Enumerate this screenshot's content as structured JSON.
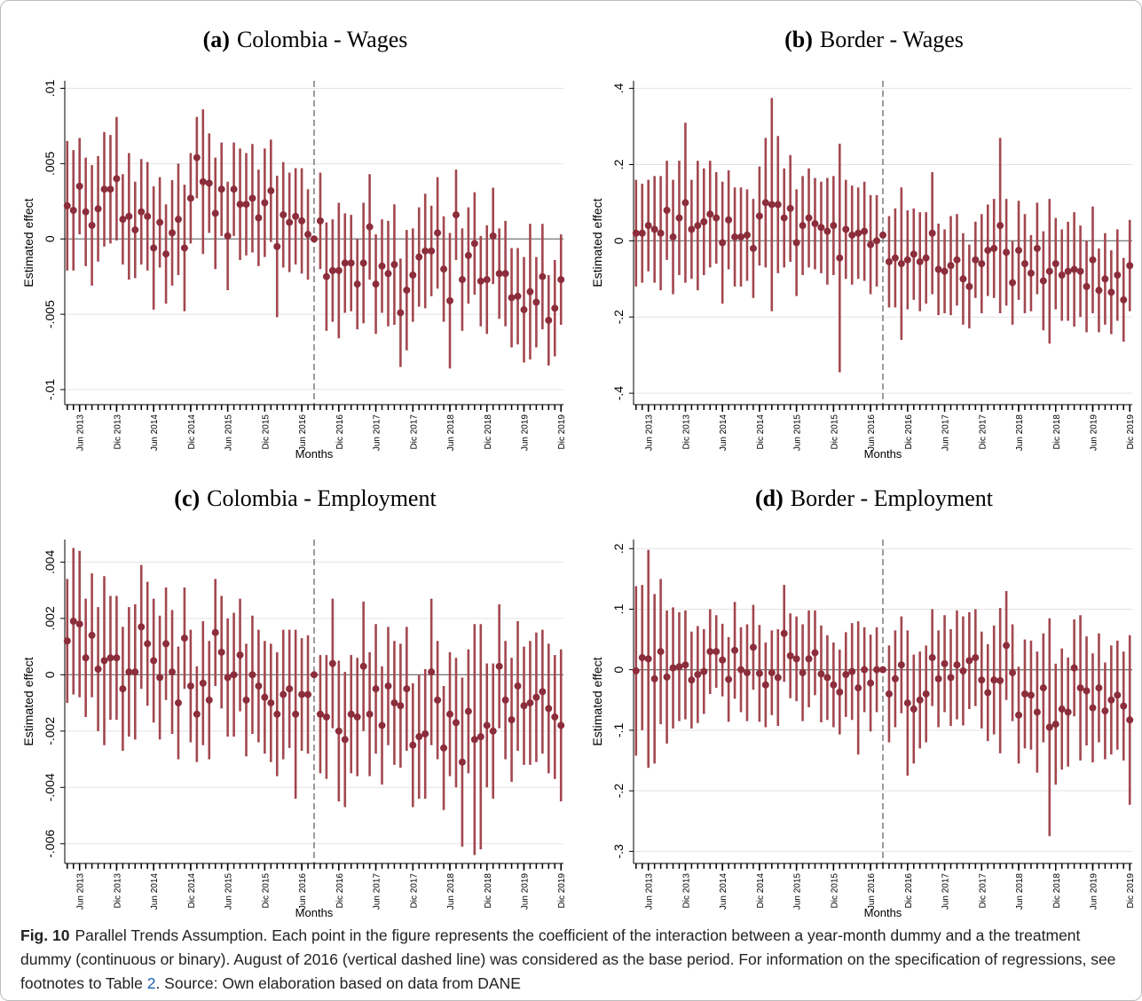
{
  "chart_data": [
    {
      "type": "errorbar",
      "panel": "(a)",
      "title": "Colombia - Wages",
      "xlabel": "Months",
      "ylabel": "Estimated effect",
      "color": "#8c2d3b",
      "grid": true,
      "vline": 40,
      "xlim": [
        -0.4,
        80.4
      ],
      "ylim": [
        -0.011,
        0.0105
      ],
      "yticks": [
        {
          "value": 0.01,
          "label": ".01"
        },
        {
          "value": 0.005,
          "label": ".005"
        },
        0,
        {
          "value": -0.005,
          "label": "-.005"
        },
        {
          "value": -0.01,
          "label": "-.01"
        }
      ],
      "xticks": [
        {
          "value": 2,
          "label": "Jun 2013"
        },
        {
          "value": 8,
          "label": "Dic 2013"
        },
        {
          "value": 14,
          "label": "Jun 2014"
        },
        {
          "value": 20,
          "label": "Dic 2014"
        },
        {
          "value": 26,
          "label": "Jun 2015"
        },
        {
          "value": 32,
          "label": "Dic 2015"
        },
        {
          "value": 38,
          "label": "Jun 2016"
        },
        {
          "value": 44,
          "label": "Dic 2016"
        },
        {
          "value": 50,
          "label": "Jun 2017"
        },
        {
          "value": 56,
          "label": "Dic 2017"
        },
        {
          "value": 62,
          "label": "Jun 2018"
        },
        {
          "value": 68,
          "label": "Dic 2018"
        },
        {
          "value": 74,
          "label": "Jun 2019"
        },
        {
          "value": 80,
          "label": "Dic 2019"
        }
      ],
      "values": [
        0.0022,
        0.0019,
        0.0035,
        0.0018,
        0.0009,
        0.002,
        0.0033,
        0.0033,
        0.004,
        0.0013,
        0.0015,
        0.0006,
        0.0018,
        0.0015,
        -0.0006,
        0.0011,
        -0.001,
        0.0004,
        0.0013,
        -0.0006,
        0.0027,
        0.0054,
        0.0038,
        0.0037,
        0.0017,
        0.0033,
        0.0002,
        0.0033,
        0.0023,
        0.0023,
        0.0027,
        0.0014,
        0.0024,
        0.0032,
        -0.0005,
        0.0016,
        0.0011,
        0.0015,
        0.0012,
        0.0003,
        0,
        0.0012,
        -0.0025,
        -0.0021,
        -0.0021,
        -0.0016,
        -0.0016,
        -0.003,
        -0.0016,
        0.0008,
        -0.003,
        -0.0018,
        -0.0023,
        -0.0017,
        -0.0049,
        -0.0034,
        -0.0024,
        -0.0012,
        -0.0008,
        -0.0008,
        0.0004,
        -0.002,
        -0.0041,
        0.0016,
        -0.0027,
        -0.0011,
        -0.0003,
        -0.0028,
        -0.0027,
        0.0002,
        -0.0023,
        -0.0023,
        -0.0039,
        -0.0038,
        -0.0047,
        -0.0035,
        -0.0042,
        -0.0025,
        -0.0054,
        -0.0046,
        -0.0027
      ],
      "errors": [
        0.0043,
        0.004,
        0.0032,
        0.0036,
        0.004,
        0.0035,
        0.0038,
        0.0036,
        0.0041,
        0.003,
        0.0042,
        0.0032,
        0.0035,
        0.0036,
        0.0041,
        0.003,
        0.0033,
        0.0035,
        0.0037,
        0.0042,
        0.003,
        0.0027,
        0.0048,
        0.0033,
        0.0037,
        0.0031,
        0.0036,
        0.0031,
        0.0037,
        0.0034,
        0.0036,
        0.0032,
        0.0036,
        0.0034,
        0.0047,
        0.0035,
        0.0033,
        0.0032,
        0.0035,
        0.003,
        0,
        0.0032,
        0.0036,
        0.0034,
        0.0045,
        0.0033,
        0.0032,
        0.003,
        0.004,
        0.0035,
        0.0033,
        0.0031,
        0.0035,
        0.004,
        0.0036,
        0.004,
        0.0031,
        0.0033,
        0.0038,
        0.003,
        0.0037,
        0.0035,
        0.0045,
        0.003,
        0.0034,
        0.0032,
        0.0034,
        0.003,
        0.0036,
        0.0032,
        0.003,
        0.0035,
        0.0033,
        0.0032,
        0.0035,
        0.0045,
        0.003,
        0.0035,
        0.003,
        0.0032,
        0.003
      ]
    },
    {
      "type": "errorbar",
      "panel": "(b)",
      "title": "Border - Wages",
      "xlabel": "Months",
      "ylabel": "Estimated effect",
      "color": "#8c2d3b",
      "grid": true,
      "vline": 40,
      "xlim": [
        -0.4,
        80.4
      ],
      "ylim": [
        -0.43,
        0.42
      ],
      "yticks": [
        {
          "value": 0.4,
          "label": ".4"
        },
        {
          "value": 0.2,
          "label": ".2"
        },
        0,
        {
          "value": -0.2,
          "label": "-.2"
        },
        {
          "value": -0.4,
          "label": "-.4"
        }
      ],
      "xticks": [
        {
          "value": 2,
          "label": "Jun 2013"
        },
        {
          "value": 8,
          "label": "Dic 2013"
        },
        {
          "value": 14,
          "label": "Jun 2014"
        },
        {
          "value": 20,
          "label": "Dic 2014"
        },
        {
          "value": 26,
          "label": "Jun 2015"
        },
        {
          "value": 32,
          "label": "Dic 2015"
        },
        {
          "value": 38,
          "label": "Jun 2016"
        },
        {
          "value": 44,
          "label": "Dic 2016"
        },
        {
          "value": 50,
          "label": "Jun 2017"
        },
        {
          "value": 56,
          "label": "Dic 2017"
        },
        {
          "value": 62,
          "label": "Jun 2018"
        },
        {
          "value": 68,
          "label": "Dic 2018"
        },
        {
          "value": 74,
          "label": "Jun 2019"
        },
        {
          "value": 80,
          "label": "Dic 2019"
        }
      ],
      "values": [
        0.02,
        0.02,
        0.04,
        0.03,
        0.02,
        0.08,
        0.01,
        0.06,
        0.1,
        0.03,
        0.04,
        0.05,
        0.07,
        0.06,
        -0.005,
        0.055,
        0.01,
        0.01,
        0.015,
        -0.02,
        0.065,
        0.1,
        0.095,
        0.095,
        0.06,
        0.085,
        -0.005,
        0.04,
        0.06,
        0.045,
        0.035,
        0.025,
        0.04,
        -0.045,
        0.03,
        0.015,
        0.02,
        0.025,
        -0.01,
        0,
        0.015,
        -0.055,
        -0.045,
        -0.06,
        -0.05,
        -0.035,
        -0.055,
        -0.045,
        0.02,
        -0.075,
        -0.08,
        -0.065,
        -0.05,
        -0.1,
        -0.12,
        -0.05,
        -0.06,
        -0.025,
        -0.02,
        0.04,
        -0.03,
        -0.11,
        -0.025,
        -0.06,
        -0.085,
        -0.02,
        -0.105,
        -0.08,
        -0.06,
        -0.09,
        -0.08,
        -0.075,
        -0.08,
        -0.12,
        -0.05,
        -0.13,
        -0.1,
        -0.135,
        -0.09,
        -0.155,
        -0.065
      ],
      "errors": [
        0.14,
        0.13,
        0.12,
        0.14,
        0.15,
        0.13,
        0.15,
        0.15,
        0.21,
        0.13,
        0.17,
        0.14,
        0.14,
        0.12,
        0.16,
        0.13,
        0.13,
        0.13,
        0.12,
        0.13,
        0.13,
        0.17,
        0.28,
        0.18,
        0.13,
        0.14,
        0.14,
        0.13,
        0.13,
        0.12,
        0.12,
        0.14,
        0.13,
        0.3,
        0.13,
        0.13,
        0.12,
        0.13,
        0.13,
        0.12,
        0,
        0.12,
        0.13,
        0.2,
        0.13,
        0.12,
        0.13,
        0.12,
        0.16,
        0.12,
        0.11,
        0.13,
        0.12,
        0.12,
        0.11,
        0.1,
        0.13,
        0.12,
        0.13,
        0.23,
        0.14,
        0.11,
        0.13,
        0.13,
        0.1,
        0.12,
        0.13,
        0.19,
        0.12,
        0.12,
        0.13,
        0.15,
        0.12,
        0.12,
        0.14,
        0.11,
        0.12,
        0.11,
        0.12,
        0.11,
        0.12
      ]
    },
    {
      "type": "errorbar",
      "panel": "(c)",
      "title": "Colombia - Employment",
      "xlabel": "Months",
      "ylabel": "Estimated effect",
      "color": "#8c2d3b",
      "grid": true,
      "vline": 40,
      "xlim": [
        -0.4,
        80.4
      ],
      "ylim": [
        -0.0067,
        0.0048
      ],
      "yticks": [
        {
          "value": 0.004,
          "label": ".004"
        },
        {
          "value": 0.002,
          "label": ".002"
        },
        0,
        {
          "value": -0.002,
          "label": "-.002"
        },
        {
          "value": -0.004,
          "label": "-.004"
        },
        {
          "value": -0.006,
          "label": "-.006"
        }
      ],
      "xticks": [
        {
          "value": 2,
          "label": "Jun 2013"
        },
        {
          "value": 8,
          "label": "Dic 2013"
        },
        {
          "value": 14,
          "label": "Jun 2014"
        },
        {
          "value": 20,
          "label": "Dic 2014"
        },
        {
          "value": 26,
          "label": "Jun 2015"
        },
        {
          "value": 32,
          "label": "Dic 2015"
        },
        {
          "value": 38,
          "label": "Jun 2016"
        },
        {
          "value": 44,
          "label": "Dic 2016"
        },
        {
          "value": 50,
          "label": "Jun 2017"
        },
        {
          "value": 56,
          "label": "Dic 2017"
        },
        {
          "value": 62,
          "label": "Jun 2018"
        },
        {
          "value": 68,
          "label": "Dic 2018"
        },
        {
          "value": 74,
          "label": "Jun 2019"
        },
        {
          "value": 80,
          "label": "Dic 2019"
        }
      ],
      "values": [
        0.0012,
        0.0019,
        0.0018,
        0.0006,
        0.0014,
        0.0002,
        0.0005,
        0.0006,
        0.0006,
        -0.0005,
        0.0001,
        0.0001,
        0.0017,
        0.0011,
        0.0005,
        -0.0001,
        0.0011,
        0.0001,
        -0.001,
        0.0013,
        -0.0004,
        -0.0014,
        -0.0003,
        -0.0009,
        0.0015,
        0.0008,
        -0.0001,
        0,
        0.0007,
        -0.0009,
        0,
        -0.0004,
        -0.0008,
        -0.001,
        -0.0014,
        -0.0007,
        -0.0005,
        -0.0014,
        -0.0007,
        -0.0007,
        0,
        -0.0014,
        -0.0015,
        0.0004,
        -0.002,
        -0.0023,
        -0.0014,
        -0.0015,
        0.0003,
        -0.0014,
        -0.0005,
        -0.0018,
        -0.0004,
        -0.001,
        -0.0011,
        -0.0005,
        -0.0025,
        -0.0022,
        -0.0021,
        0.0001,
        -0.0009,
        -0.0026,
        -0.0014,
        -0.0017,
        -0.0031,
        -0.0013,
        -0.0023,
        -0.0022,
        -0.0018,
        -0.002,
        0.0003,
        -0.0009,
        -0.0016,
        -0.0004,
        -0.0011,
        -0.001,
        -0.0008,
        -0.0006,
        -0.0012,
        -0.0015,
        -0.0018
      ],
      "errors": [
        0.0022,
        0.0026,
        0.0026,
        0.0021,
        0.0022,
        0.0022,
        0.003,
        0.0022,
        0.0022,
        0.0022,
        0.0023,
        0.0024,
        0.0022,
        0.0022,
        0.0022,
        0.0022,
        0.002,
        0.0022,
        0.002,
        0.0018,
        0.002,
        0.0017,
        0.0022,
        0.0021,
        0.0019,
        0.002,
        0.0021,
        0.0022,
        0.002,
        0.002,
        0.0021,
        0.002,
        0.002,
        0.0021,
        0.0022,
        0.0023,
        0.0021,
        0.003,
        0.002,
        0.0021,
        0,
        0.0021,
        0.0022,
        0.0023,
        0.0025,
        0.0024,
        0.0021,
        0.0021,
        0.0023,
        0.0022,
        0.0023,
        0.0021,
        0.0021,
        0.0022,
        0.0022,
        0.0022,
        0.0022,
        0.0022,
        0.0023,
        0.0026,
        0.0021,
        0.0022,
        0.0022,
        0.0023,
        0.003,
        0.0022,
        0.0041,
        0.004,
        0.0022,
        0.0024,
        0.0022,
        0.0021,
        0.0022,
        0.0023,
        0.0021,
        0.0022,
        0.0023,
        0.0022,
        0.0023,
        0.0022,
        0.0027
      ]
    },
    {
      "type": "errorbar",
      "panel": "(d)",
      "title": "Border - Employment",
      "xlabel": "Months",
      "ylabel": "Estimated effect",
      "color": "#8c2d3b",
      "grid": true,
      "vline": 40,
      "xlim": [
        -0.4,
        80.4
      ],
      "ylim": [
        -0.32,
        0.215
      ],
      "yticks": [
        {
          "value": 0.2,
          "label": ".2"
        },
        {
          "value": 0.1,
          "label": ".1"
        },
        0,
        {
          "value": -0.1,
          "label": "-.1"
        },
        {
          "value": -0.2,
          "label": "-.2"
        },
        {
          "value": -0.3,
          "label": "-.3"
        }
      ],
      "xticks": [
        {
          "value": 2,
          "label": "Jun 2013"
        },
        {
          "value": 8,
          "label": "Dic 2013"
        },
        {
          "value": 14,
          "label": "Jun 2014"
        },
        {
          "value": 20,
          "label": "Dic 2014"
        },
        {
          "value": 26,
          "label": "Jun 2015"
        },
        {
          "value": 32,
          "label": "Dic 2015"
        },
        {
          "value": 38,
          "label": "Jun 2016"
        },
        {
          "value": 44,
          "label": "Dic 2016"
        },
        {
          "value": 50,
          "label": "Jun 2017"
        },
        {
          "value": 56,
          "label": "Dic 2017"
        },
        {
          "value": 62,
          "label": "Jun 2018"
        },
        {
          "value": 68,
          "label": "Dic 2018"
        },
        {
          "value": 74,
          "label": "Jun 2019"
        },
        {
          "value": 80,
          "label": "Dic 2019"
        }
      ],
      "values": [
        -0.002,
        0.02,
        0.018,
        -0.015,
        0.03,
        -0.012,
        0.003,
        0.005,
        0.008,
        -0.017,
        -0.008,
        -0.003,
        0.03,
        0.03,
        0.016,
        -0.016,
        0.032,
        0,
        -0.005,
        0.037,
        -0.006,
        -0.025,
        -0.005,
        -0.013,
        0.06,
        0.023,
        0.018,
        -0.005,
        0.018,
        0.028,
        -0.007,
        -0.013,
        -0.025,
        -0.037,
        -0.008,
        -0.003,
        -0.03,
        0,
        -0.022,
        0,
        0,
        -0.04,
        -0.015,
        0.008,
        -0.055,
        -0.065,
        -0.05,
        -0.04,
        0.02,
        -0.015,
        0.01,
        -0.013,
        0.008,
        -0.002,
        0.015,
        0.02,
        -0.017,
        -0.038,
        -0.017,
        -0.018,
        0.04,
        -0.005,
        -0.075,
        -0.04,
        -0.042,
        -0.07,
        -0.03,
        -0.095,
        -0.09,
        -0.065,
        -0.07,
        0.003,
        -0.03,
        -0.035,
        -0.063,
        -0.03,
        -0.068,
        -0.05,
        -0.042,
        -0.06,
        -0.083
      ],
      "errors": [
        0.14,
        0.12,
        0.18,
        0.14,
        0.12,
        0.11,
        0.1,
        0.09,
        0.09,
        0.08,
        0.08,
        0.07,
        0.07,
        0.06,
        0.06,
        0.07,
        0.08,
        0.07,
        0.08,
        0.07,
        0.08,
        0.07,
        0.07,
        0.08,
        0.08,
        0.07,
        0.07,
        0.08,
        0.08,
        0.07,
        0.08,
        0.07,
        0.07,
        0.07,
        0.07,
        0.08,
        0.11,
        0.07,
        0.08,
        0.07,
        0,
        0.08,
        0.08,
        0.08,
        0.12,
        0.09,
        0.08,
        0.08,
        0.08,
        0.08,
        0.08,
        0.08,
        0.09,
        0.09,
        0.08,
        0.08,
        0.08,
        0.08,
        0.09,
        0.12,
        0.09,
        0.08,
        0.08,
        0.09,
        0.09,
        0.1,
        0.09,
        0.18,
        0.1,
        0.1,
        0.09,
        0.08,
        0.12,
        0.09,
        0.09,
        0.09,
        0.08,
        0.09,
        0.09,
        0.09,
        0.14
      ]
    }
  ],
  "caption": {
    "label": "Fig. 10",
    "text": "Parallel Trends Assumption. Each point in the figure represents the coefficient of the interaction between a year-month dummy and a the treatment dummy (continuous or binary). August of 2016 (vertical dashed line) was considered as the base period. For information on the specification of regressions, see footnotes to Table ",
    "link": "2",
    "source": ". Source: Own elaboration based on data from DANE"
  }
}
